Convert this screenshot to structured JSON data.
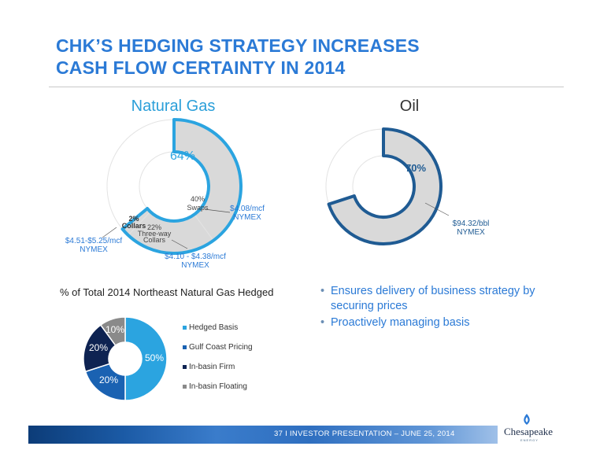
{
  "title_line1": "CHK’S HEDGING STRATEGY INCREASES",
  "title_line2": "CASH FLOW CERTAINTY IN 2014",
  "chart_data": [
    {
      "type": "pie",
      "subtype": "donut",
      "title": "Natural Gas",
      "total_hedged_label": "64%",
      "segments": [
        {
          "label": "Swaps",
          "percent_label": "40%",
          "value": 40,
          "price": "$4.08/mcf",
          "price_basis": "NYMEX",
          "color": "#d9d9d9"
        },
        {
          "label": "Three-way Collars",
          "percent_label": "22%",
          "value": 22,
          "price": "$4.10 - $4.38/mcf",
          "price_basis": "NYMEX",
          "color": "#d9d9d9"
        },
        {
          "label": "Collars",
          "percent_label": "2%",
          "value": 2,
          "price": "$4.51-$5.25/mcf",
          "price_basis": "NYMEX",
          "color": "#d9d9d9"
        },
        {
          "label": "",
          "value": 36,
          "color": "#ffffff"
        }
      ],
      "highlight_color": "#2ba4e0"
    },
    {
      "type": "pie",
      "subtype": "donut",
      "title": "Oil",
      "total_hedged_label": "70%",
      "segments": [
        {
          "label": "",
          "value": 70,
          "price": "$94.32/bbl",
          "price_basis": "NYMEX",
          "color": "#d9d9d9"
        },
        {
          "label": "",
          "value": 30,
          "color": "#ffffff"
        }
      ],
      "highlight_color": "#1f5b93"
    },
    {
      "type": "pie",
      "subtype": "donut",
      "title": "% of Total 2014 Northeast Natural Gas Hedged",
      "segments": [
        {
          "label": "Hedged Basis",
          "percent_label": "50%",
          "value": 50,
          "color": "#2ba4e0"
        },
        {
          "label": "Gulf Coast Pricing",
          "percent_label": "20%",
          "value": 20,
          "color": "#1a62b2"
        },
        {
          "label": "In-basin Firm",
          "percent_label": "20%",
          "value": 20,
          "color": "#0e2352"
        },
        {
          "label": "In-basin Floating",
          "percent_label": "10%",
          "value": 10,
          "color": "#8a8a8a"
        }
      ],
      "legend_position": "right"
    }
  ],
  "bullets": [
    "Ensures delivery of business strategy by securing prices",
    "Proactively managing basis"
  ],
  "footer": "37   I   INVESTOR PRESENTATION – JUNE 25, 2014",
  "logo": {
    "name": "Chesapeake",
    "sub": "ENERGY"
  }
}
